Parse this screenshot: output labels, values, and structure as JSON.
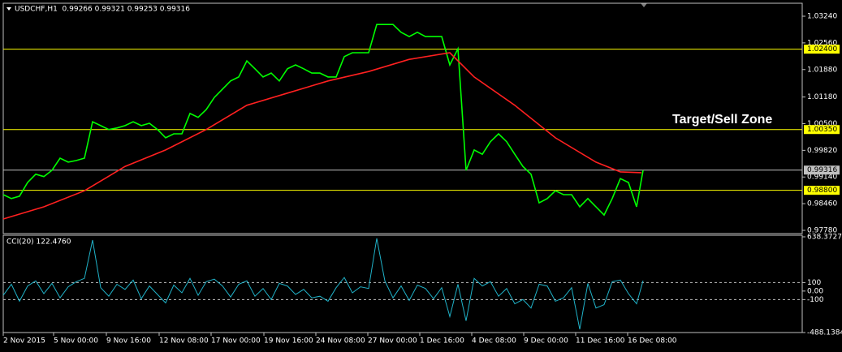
{
  "chart_data": [
    {
      "type": "line",
      "title": "USDCHF,H1  0.99266 0.99321 0.99253 0.99316",
      "annotation": "Target/Sell Zone",
      "xlim": [
        0,
        984
      ],
      "ylim": [
        0.97697,
        1.03571
      ],
      "yticks": [
        {
          "value": 1.0324,
          "label": "1.03240"
        },
        {
          "value": 1.0256,
          "label": "1.02560"
        },
        {
          "value": 1.0188,
          "label": "1.01880"
        },
        {
          "value": 1.0118,
          "label": "1.01180"
        },
        {
          "value": 1.005,
          "label": "1.00500"
        },
        {
          "value": 0.9982,
          "label": "0.99820"
        },
        {
          "value": 0.9914,
          "label": "0.99140"
        },
        {
          "value": 0.9846,
          "label": "0.98460"
        },
        {
          "value": 0.9778,
          "label": "0.97780"
        }
      ],
      "levels": [
        {
          "value": 1.024,
          "label": "1.02400",
          "color": "#ffff00"
        },
        {
          "value": 1.0035,
          "label": "1.00350",
          "color": "#ffff00"
        },
        {
          "value": 0.988,
          "label": "0.98800",
          "color": "#ffff00"
        },
        {
          "value": 0.99316,
          "label": "0.99316",
          "color": "#c0c0c0"
        }
      ],
      "series": [
        {
          "color": "#00ff00",
          "x": [
            0,
            10,
            20,
            30,
            40,
            50,
            60,
            70,
            80,
            90,
            100,
            110,
            120,
            130,
            140,
            150,
            160,
            170,
            180,
            190,
            200,
            210,
            220,
            230,
            240,
            250,
            260,
            270,
            280,
            290,
            300,
            310,
            320,
            330,
            340,
            350,
            360,
            370,
            380,
            390,
            400,
            410,
            420,
            430,
            440,
            450,
            460,
            470,
            480,
            490,
            500,
            510,
            520,
            530,
            540,
            550,
            560,
            570,
            580,
            590,
            600,
            610,
            620,
            630,
            640,
            650,
            660,
            670,
            680,
            690,
            700,
            710,
            720,
            730,
            740,
            750,
            760,
            770,
            780,
            788
          ],
          "values": [
            0.9869,
            0.9859,
            0.9865,
            0.99,
            0.9921,
            0.9915,
            0.9931,
            0.9962,
            0.9952,
            0.9956,
            0.9962,
            1.0055,
            1.0045,
            1.0035,
            1.0039,
            1.0045,
            1.0055,
            1.0045,
            1.0051,
            1.0035,
            1.0014,
            1.0024,
            1.0024,
            1.0076,
            1.0066,
            1.0086,
            1.0117,
            1.0138,
            1.0159,
            1.0169,
            1.021,
            1.019,
            1.0169,
            1.0179,
            1.0159,
            1.019,
            1.02,
            1.019,
            1.0179,
            1.0179,
            1.0169,
            1.0169,
            1.0221,
            1.0231,
            1.0231,
            1.0231,
            1.0303,
            1.0303,
            1.0303,
            1.0283,
            1.0272,
            1.0283,
            1.0272,
            1.0272,
            1.0272,
            1.02,
            1.0241,
            0.9931,
            0.9983,
            0.9972,
            1.0004,
            1.0024,
            1.0004,
            0.9972,
            0.9941,
            0.9921,
            0.9848,
            0.9859,
            0.9879,
            0.9869,
            0.9869,
            0.9838,
            0.9859,
            0.9838,
            0.9817,
            0.9859,
            0.991,
            0.99,
            0.9838,
            0.9931
          ]
        },
        {
          "color": "#ff2020",
          "x": [
            0,
            50,
            100,
            150,
            200,
            250,
            300,
            350,
            400,
            450,
            500,
            550,
            580,
            630,
            680,
            730,
            760,
            786
          ],
          "values": [
            0.9807,
            0.9838,
            0.9879,
            0.9941,
            0.9983,
            1.0035,
            1.0097,
            1.0128,
            1.0159,
            1.0183,
            1.0214,
            1.0231,
            1.0169,
            1.0097,
            1.0014,
            0.9952,
            0.9927,
            0.9925
          ]
        }
      ]
    },
    {
      "type": "line",
      "title": "CCI(20) 122.4760",
      "xlim": [
        0,
        984
      ],
      "ylim": [
        -488.1384,
        638.3727
      ],
      "yticks": [
        638.3727,
        100,
        {
          "value": 0,
          "label": "0.00"
        },
        -100,
        -488.1384
      ],
      "levels": [
        100,
        -100
      ],
      "xticks": [
        {
          "value": 0,
          "label": "2 Nov 2015"
        },
        {
          "value": 62,
          "label": "5 Nov 00:00"
        },
        {
          "value": 127,
          "label": "9 Nov 16:00"
        },
        {
          "value": 192,
          "label": "12 Nov 08:00"
        },
        {
          "value": 256,
          "label": "17 Nov 00:00"
        },
        {
          "value": 321,
          "label": "19 Nov 16:00"
        },
        {
          "value": 385,
          "label": "24 Nov 08:00"
        },
        {
          "value": 449,
          "label": "27 Nov 00:00"
        },
        {
          "value": 513,
          "label": "1 Dec 16:00"
        },
        {
          "value": 577,
          "label": "4 Dec 08:00"
        },
        {
          "value": 641,
          "label": "9 Dec 00:00"
        },
        {
          "value": 705,
          "label": "11 Dec 16:00"
        },
        {
          "value": 769,
          "label": "16 Dec 08:00"
        }
      ],
      "series": [
        {
          "color": "#20b2c8",
          "x": [
            0,
            10,
            20,
            30,
            40,
            50,
            60,
            70,
            80,
            90,
            100,
            110,
            120,
            130,
            140,
            150,
            160,
            170,
            180,
            190,
            200,
            210,
            220,
            230,
            240,
            250,
            260,
            270,
            280,
            290,
            300,
            310,
            320,
            330,
            340,
            350,
            360,
            370,
            380,
            390,
            400,
            410,
            420,
            430,
            440,
            450,
            460,
            470,
            480,
            490,
            500,
            510,
            520,
            530,
            540,
            550,
            560,
            570,
            580,
            590,
            600,
            610,
            620,
            630,
            640,
            650,
            660,
            670,
            680,
            690,
            700,
            710,
            720,
            730,
            740,
            750,
            760,
            770,
            780,
            788
          ],
          "values": [
            -50,
            80,
            -120,
            60,
            120,
            -30,
            90,
            -80,
            50,
            110,
            150,
            600,
            40,
            -60,
            80,
            20,
            130,
            -90,
            60,
            -40,
            -140,
            70,
            -20,
            150,
            -50,
            110,
            140,
            60,
            -70,
            80,
            120,
            -60,
            30,
            -100,
            90,
            60,
            -40,
            20,
            -80,
            -60,
            -120,
            40,
            160,
            -20,
            50,
            30,
            620,
            120,
            -80,
            60,
            -110,
            70,
            30,
            -90,
            40,
            -300,
            80,
            -350,
            150,
            60,
            110,
            -60,
            30,
            -150,
            -100,
            -200,
            80,
            60,
            -120,
            -80,
            40,
            -450,
            90,
            -200,
            -160,
            110,
            130,
            -30,
            -150,
            122.476
          ]
        }
      ]
    }
  ]
}
